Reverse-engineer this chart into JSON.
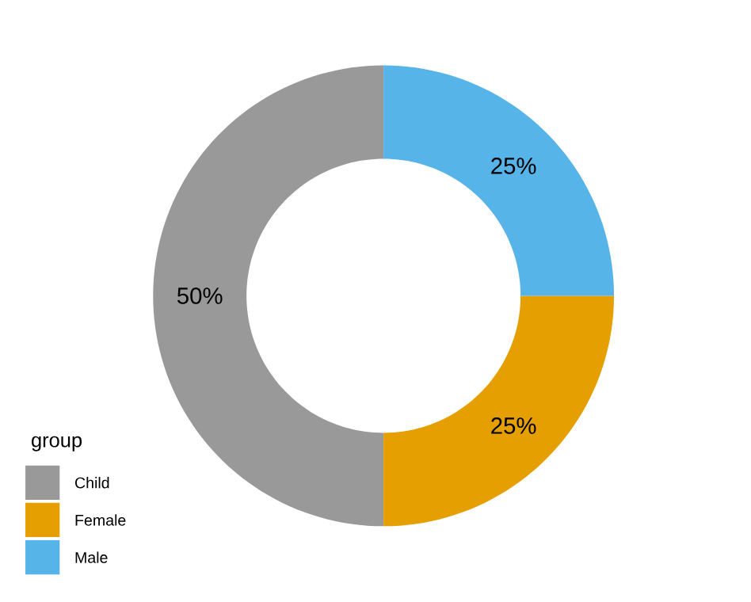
{
  "chart_data": {
    "type": "donut",
    "categories": [
      "Child",
      "Female",
      "Male"
    ],
    "values": [
      50,
      25,
      25
    ],
    "colors": [
      "#999999",
      "#e69f00",
      "#56b4e9"
    ],
    "value_labels": [
      "50%",
      "25%",
      "25%"
    ],
    "legend_title": "group",
    "legend": "bottom left"
  }
}
